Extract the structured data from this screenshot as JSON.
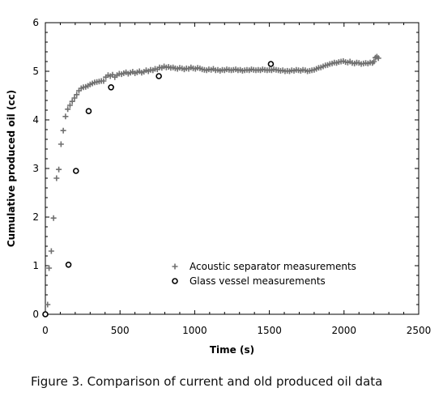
{
  "chart_data": {
    "type": "scatter",
    "xlabel": "Time (s)",
    "ylabel": "Cumulative produced oil (cc)",
    "xlim": [
      0,
      2500
    ],
    "ylim": [
      0,
      6
    ],
    "x_ticks": [
      0,
      500,
      1000,
      1500,
      2000,
      2500
    ],
    "y_ticks": [
      0,
      1,
      2,
      3,
      4,
      5,
      6
    ],
    "grid": false,
    "legend_position": "bottom-center",
    "colors": {
      "acoustic": "#707070",
      "glass": "#000000",
      "axis": "#000000"
    },
    "series": [
      {
        "name": "Acoustic separator measurements",
        "marker": "plus",
        "points": [
          [
            0,
            0.0
          ],
          [
            15,
            0.2
          ],
          [
            25,
            0.95
          ],
          [
            40,
            1.3
          ],
          [
            55,
            1.98
          ],
          [
            75,
            2.8
          ],
          [
            90,
            2.98
          ],
          [
            105,
            3.5
          ],
          [
            120,
            3.78
          ],
          [
            135,
            4.07
          ],
          [
            150,
            4.22
          ],
          [
            165,
            4.3
          ],
          [
            180,
            4.38
          ],
          [
            195,
            4.45
          ],
          [
            210,
            4.52
          ],
          [
            225,
            4.6
          ],
          [
            240,
            4.65
          ],
          [
            255,
            4.67
          ],
          [
            270,
            4.68
          ],
          [
            285,
            4.7
          ],
          [
            300,
            4.73
          ],
          [
            315,
            4.75
          ],
          [
            330,
            4.77
          ],
          [
            345,
            4.78
          ],
          [
            360,
            4.79
          ],
          [
            375,
            4.8
          ],
          [
            390,
            4.8
          ],
          [
            405,
            4.88
          ],
          [
            420,
            4.92
          ],
          [
            435,
            4.9
          ],
          [
            450,
            4.93
          ],
          [
            465,
            4.88
          ],
          [
            480,
            4.92
          ],
          [
            495,
            4.95
          ],
          [
            510,
            4.94
          ],
          [
            525,
            4.96
          ],
          [
            540,
            4.98
          ],
          [
            555,
            4.95
          ],
          [
            570,
            4.97
          ],
          [
            585,
            4.99
          ],
          [
            600,
            4.96
          ],
          [
            615,
            4.98
          ],
          [
            630,
            5.0
          ],
          [
            645,
            4.97
          ],
          [
            660,
            4.99
          ],
          [
            675,
            5.02
          ],
          [
            690,
            5.0
          ],
          [
            705,
            5.03
          ],
          [
            720,
            5.02
          ],
          [
            735,
            5.05
          ],
          [
            750,
            5.04
          ],
          [
            765,
            5.08
          ],
          [
            780,
            5.07
          ],
          [
            795,
            5.1
          ],
          [
            810,
            5.08
          ],
          [
            825,
            5.09
          ],
          [
            840,
            5.07
          ],
          [
            855,
            5.08
          ],
          [
            870,
            5.06
          ],
          [
            885,
            5.05
          ],
          [
            900,
            5.07
          ],
          [
            915,
            5.06
          ],
          [
            930,
            5.04
          ],
          [
            945,
            5.06
          ],
          [
            960,
            5.05
          ],
          [
            975,
            5.08
          ],
          [
            990,
            5.06
          ],
          [
            1005,
            5.05
          ],
          [
            1020,
            5.07
          ],
          [
            1035,
            5.06
          ],
          [
            1050,
            5.04
          ],
          [
            1065,
            5.03
          ],
          [
            1080,
            5.02
          ],
          [
            1095,
            5.04
          ],
          [
            1110,
            5.03
          ],
          [
            1125,
            5.05
          ],
          [
            1140,
            5.02
          ],
          [
            1155,
            5.03
          ],
          [
            1170,
            5.01
          ],
          [
            1185,
            5.03
          ],
          [
            1200,
            5.02
          ],
          [
            1215,
            5.04
          ],
          [
            1230,
            5.03
          ],
          [
            1245,
            5.02
          ],
          [
            1260,
            5.03
          ],
          [
            1275,
            5.04
          ],
          [
            1290,
            5.02
          ],
          [
            1305,
            5.03
          ],
          [
            1320,
            5.01
          ],
          [
            1335,
            5.02
          ],
          [
            1350,
            5.03
          ],
          [
            1365,
            5.02
          ],
          [
            1380,
            5.04
          ],
          [
            1395,
            5.03
          ],
          [
            1410,
            5.02
          ],
          [
            1425,
            5.03
          ],
          [
            1440,
            5.02
          ],
          [
            1455,
            5.04
          ],
          [
            1470,
            5.03
          ],
          [
            1485,
            5.02
          ],
          [
            1500,
            5.03
          ],
          [
            1515,
            5.02
          ],
          [
            1530,
            5.04
          ],
          [
            1545,
            5.03
          ],
          [
            1560,
            5.02
          ],
          [
            1575,
            5.01
          ],
          [
            1590,
            5.02
          ],
          [
            1605,
            5.0
          ],
          [
            1620,
            5.01
          ],
          [
            1635,
            5.0
          ],
          [
            1650,
            5.02
          ],
          [
            1665,
            5.01
          ],
          [
            1680,
            5.03
          ],
          [
            1695,
            5.02
          ],
          [
            1710,
            5.01
          ],
          [
            1725,
            5.03
          ],
          [
            1740,
            5.02
          ],
          [
            1755,
            5.0
          ],
          [
            1770,
            5.01
          ],
          [
            1785,
            5.02
          ],
          [
            1800,
            5.03
          ],
          [
            1815,
            5.05
          ],
          [
            1830,
            5.07
          ],
          [
            1845,
            5.08
          ],
          [
            1860,
            5.1
          ],
          [
            1875,
            5.12
          ],
          [
            1890,
            5.13
          ],
          [
            1905,
            5.15
          ],
          [
            1920,
            5.16
          ],
          [
            1935,
            5.18
          ],
          [
            1950,
            5.17
          ],
          [
            1965,
            5.19
          ],
          [
            1980,
            5.2
          ],
          [
            1995,
            5.21
          ],
          [
            2010,
            5.19
          ],
          [
            2025,
            5.18
          ],
          [
            2040,
            5.2
          ],
          [
            2055,
            5.17
          ],
          [
            2070,
            5.16
          ],
          [
            2085,
            5.18
          ],
          [
            2100,
            5.17
          ],
          [
            2115,
            5.15
          ],
          [
            2130,
            5.16
          ],
          [
            2145,
            5.17
          ],
          [
            2160,
            5.16
          ],
          [
            2175,
            5.18
          ],
          [
            2190,
            5.17
          ],
          [
            2200,
            5.2
          ],
          [
            2210,
            5.28
          ],
          [
            2220,
            5.3
          ],
          [
            2230,
            5.27
          ]
        ]
      },
      {
        "name": "Glass vessel measurements",
        "marker": "circle",
        "points": [
          [
            0,
            0.0
          ],
          [
            155,
            1.02
          ],
          [
            205,
            2.95
          ],
          [
            290,
            4.18
          ],
          [
            440,
            4.67
          ],
          [
            760,
            4.9
          ],
          [
            1510,
            5.15
          ]
        ]
      }
    ]
  },
  "caption": "Figure 3. Comparison of current and old produced oil data"
}
